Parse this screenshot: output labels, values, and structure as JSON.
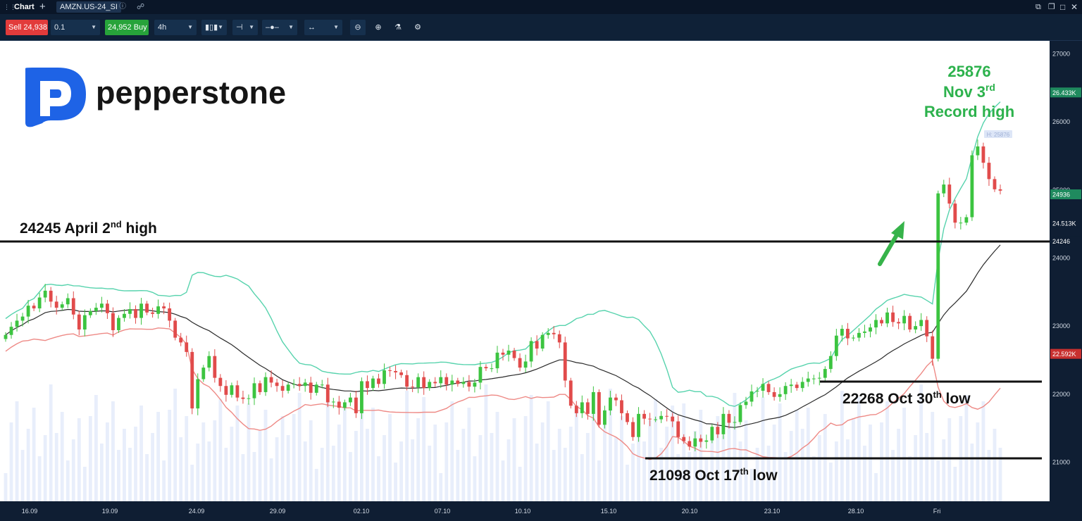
{
  "titlebar": {
    "tab_label": "Chart",
    "symbol_tab": "AMZN.US-24_SI"
  },
  "toolbar": {
    "sell_label": "Sell 24,938",
    "quantity": "0.1",
    "buy_label": "24,952 Buy",
    "timeframe": "4h"
  },
  "brand": {
    "name": "pepperstone",
    "colors": {
      "logo": "#1e63e6",
      "up": "#3cc440",
      "down": "#e14b4b",
      "band": "#57d3ad",
      "lower_band": "#ee8a86",
      "mid": "#2b2b2b",
      "annotation_green": "#2db24d"
    }
  },
  "annotations": {
    "record_value": "25876",
    "record_date": "Nov 3",
    "record_date_sup": "rd",
    "record_label": "Record high",
    "april_text": "24245 April 2",
    "april_sup": "nd",
    "april_tail": " high",
    "oct30_text": "22268 Oct 30",
    "oct30_sup": "th",
    "oct30_tail": " low",
    "oct17_text": "21098 Oct 17",
    "oct17_sup": "th",
    "oct17_tail": " low",
    "hi_marker": "H: 25876"
  },
  "chart_data": {
    "type": "candlestick",
    "y_ticks": [
      27000,
      26000,
      25000,
      24000,
      23000,
      22000,
      21000
    ],
    "y_range": [
      20450,
      27150
    ],
    "price_badges": [
      "26.433K",
      "24936",
      "24.513K",
      "24246",
      "22.592K"
    ],
    "x_tick_labels": [
      "16.09",
      "19.09",
      "24.09",
      "29.09",
      "02.10",
      "07.10",
      "10.10",
      "15.10",
      "20.10",
      "23.10",
      "28.10",
      "Fri"
    ],
    "horizontal_levels": [
      24245,
      22268,
      21098
    ],
    "last_price": 24936,
    "record_high": 25876,
    "candle_closes": [
      22870,
      22990,
      23080,
      23140,
      23300,
      23260,
      23420,
      23520,
      23360,
      23270,
      23320,
      23410,
      23170,
      22950,
      23160,
      23220,
      23270,
      23330,
      23190,
      22940,
      23120,
      23180,
      23250,
      23120,
      23330,
      23200,
      23180,
      23290,
      23260,
      23080,
      22830,
      22760,
      22620,
      21790,
      22220,
      22390,
      22560,
      22240,
      22120,
      21990,
      22130,
      21950,
      21930,
      21940,
      22160,
      22030,
      22250,
      22170,
      22120,
      22050,
      22140,
      22150,
      22120,
      22170,
      22020,
      22140,
      22140,
      21880,
      21890,
      21800,
      21880,
      21950,
      21720,
      22190,
      22090,
      22230,
      22150,
      22350,
      22340,
      22320,
      22280,
      22110,
      22100,
      22250,
      22090,
      22180,
      22160,
      22250,
      22140,
      22200,
      22150,
      22180,
      22110,
      22170,
      22400,
      22380,
      22380,
      22610,
      22580,
      22640,
      22530,
      22390,
      22480,
      22780,
      22670,
      22870,
      22900,
      22880,
      22760,
      22200,
      21830,
      21720,
      21880,
      21710,
      22030,
      21550,
      21760,
      21950,
      21910,
      21720,
      21590,
      21370,
      21710,
      21640,
      21630,
      21630,
      21680,
      21670,
      21600,
      21370,
      21310,
      21230,
      21350,
      21300,
      21320,
      21520,
      21410,
      21710,
      21580,
      21590,
      21840,
      21890,
      22040,
      22050,
      22150,
      22030,
      21960,
      22000,
      22120,
      22140,
      22090,
      22180,
      22230,
      22230,
      22240,
      22370,
      22560,
      22860,
      22960,
      22820,
      22830,
      22900,
      22920,
      22980,
      23090,
      23040,
      23200,
      23060,
      23040,
      23150,
      22950,
      23000,
      23090,
      22850,
      22520,
      24950,
      25080,
      24800,
      24520,
      24520,
      24600,
      25510,
      25640,
      25400,
      25160,
      25010,
      24990
    ],
    "volume_note": "relative volume bars shown, no scale printed"
  }
}
